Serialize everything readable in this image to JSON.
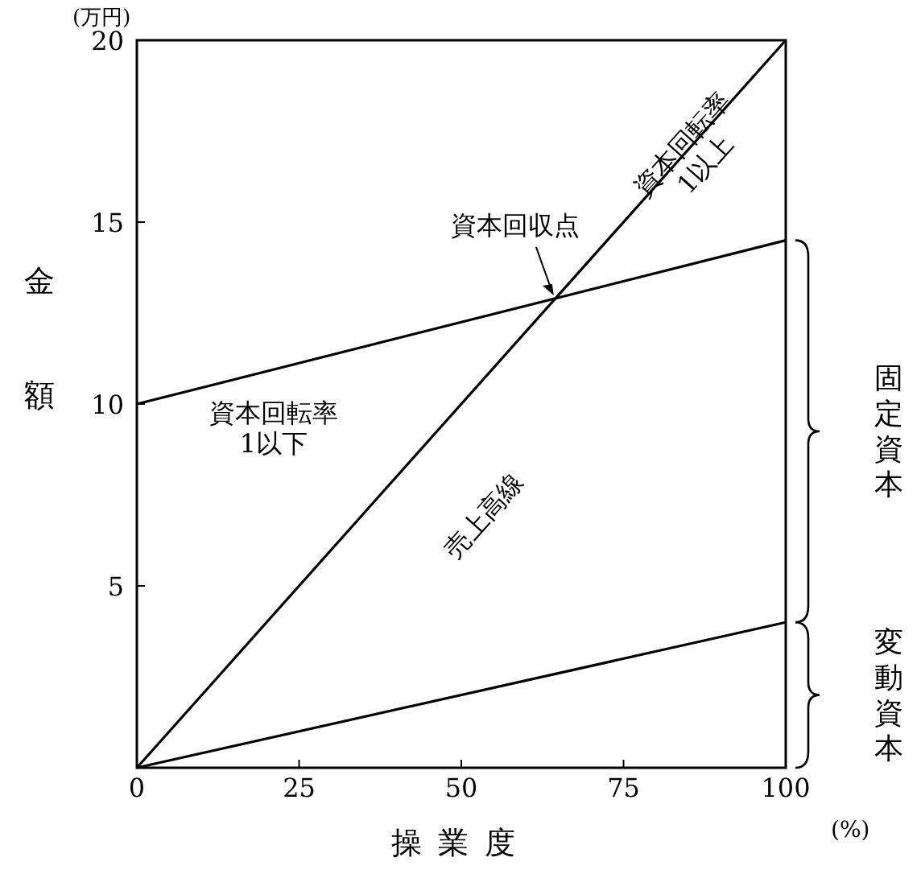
{
  "chart_data": {
    "type": "line",
    "xlabel": "操業度",
    "ylabel": "金額",
    "x": [
      0,
      100
    ],
    "series": [
      {
        "color": "#000000",
        "values": [
          0,
          20
        ]
      },
      {
        "color": "#000000",
        "values": [
          10,
          14.5
        ]
      },
      {
        "color": "#000000",
        "values": [
          0,
          4
        ]
      }
    ],
    "xlim": [
      0,
      100
    ],
    "ylim": [
      0,
      20
    ],
    "xticks": [
      0,
      25,
      50,
      75,
      100
    ],
    "yticks": [
      5,
      10,
      15,
      20
    ],
    "grid": false,
    "line_style": "solid",
    "annotations": [
      {
        "text": "資本回収点",
        "x": 64.5,
        "y": 12.9
      },
      {
        "text": "資本回転率 1以上",
        "x": 85.6,
        "y": 16.9
      },
      "資本回転率 1以下",
      "売上高線",
      "固定資本",
      "変動資本",
      "(万円)",
      "(%)"
    ]
  }
}
